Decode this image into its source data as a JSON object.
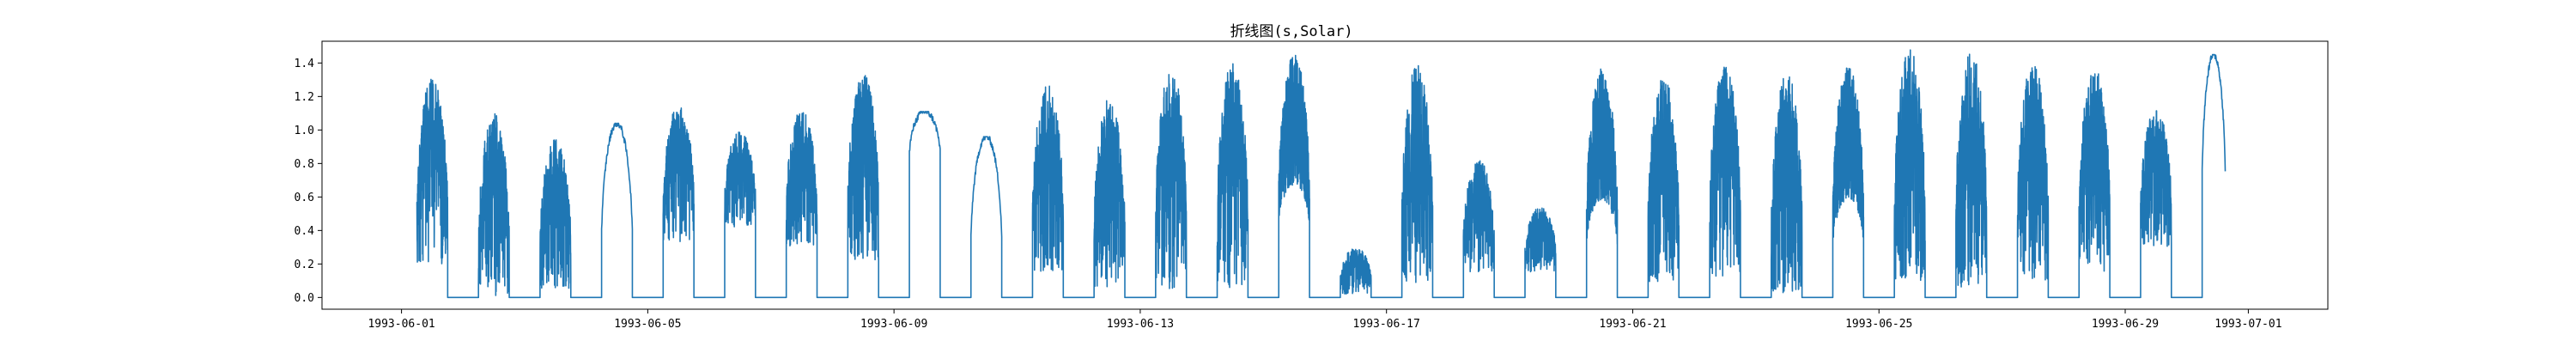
{
  "chart_data": {
    "type": "line",
    "title": "折线图(s,Solar)",
    "xlabel": "",
    "ylabel": "",
    "x_range": [
      "1993-05-30T17:00",
      "1993-07-02T07:00"
    ],
    "ylim": [
      -0.07,
      1.53
    ],
    "yticks": [
      0.0,
      0.2,
      0.4,
      0.6,
      0.8,
      1.0,
      1.2,
      1.4
    ],
    "ytick_labels": [
      "0.0",
      "0.2",
      "0.4",
      "0.6",
      "0.8",
      "1.0",
      "1.2",
      "1.4"
    ],
    "xticks": [
      "1993-06-01",
      "1993-06-05",
      "1993-06-09",
      "1993-06-13",
      "1993-06-17",
      "1993-06-21",
      "1993-06-25",
      "1993-06-29",
      "1993-07-01"
    ],
    "grid": false,
    "legend": "none",
    "series": [
      {
        "color": "#1f77b4",
        "days": [
          {
            "date": "1993-06-01",
            "sunrise": "06:00",
            "sunset": "18:00",
            "daytime_min": 0.2,
            "daytime_max": 1.31,
            "pattern": "variable"
          },
          {
            "date": "1993-06-02",
            "sunrise": "06:00",
            "sunset": "18:00",
            "daytime_min": 0.01,
            "daytime_max": 1.1,
            "pattern": "variable"
          },
          {
            "date": "1993-06-03",
            "sunrise": "06:00",
            "sunset": "18:00",
            "daytime_min": 0.05,
            "daytime_max": 0.95,
            "pattern": "variable"
          },
          {
            "date": "1993-06-04",
            "sunrise": "06:00",
            "sunset": "18:00",
            "daytime_min": 0.0,
            "daytime_max": 1.04,
            "pattern": "clear"
          },
          {
            "date": "1993-06-05",
            "sunrise": "06:00",
            "sunset": "18:00",
            "daytime_min": 0.33,
            "daytime_max": 1.15,
            "pattern": "variable"
          },
          {
            "date": "1993-06-06",
            "sunrise": "06:00",
            "sunset": "18:00",
            "daytime_min": 0.42,
            "daytime_max": 0.99,
            "pattern": "variable"
          },
          {
            "date": "1993-06-07",
            "sunrise": "06:00",
            "sunset": "18:00",
            "daytime_min": 0.28,
            "daytime_max": 1.12,
            "pattern": "variable"
          },
          {
            "date": "1993-06-08",
            "sunrise": "06:00",
            "sunset": "18:00",
            "daytime_min": 0.22,
            "daytime_max": 1.34,
            "pattern": "variable"
          },
          {
            "date": "1993-06-09",
            "sunrise": "06:00",
            "sunset": "18:00",
            "daytime_min": 0.72,
            "daytime_max": 1.11,
            "pattern": "clear"
          },
          {
            "date": "1993-06-10",
            "sunrise": "06:00",
            "sunset": "18:00",
            "daytime_min": 0.0,
            "daytime_max": 0.96,
            "pattern": "clear"
          },
          {
            "date": "1993-06-11",
            "sunrise": "06:00",
            "sunset": "18:00",
            "daytime_min": 0.15,
            "daytime_max": 1.28,
            "pattern": "variable"
          },
          {
            "date": "1993-06-12",
            "sunrise": "06:00",
            "sunset": "18:00",
            "daytime_min": 0.05,
            "daytime_max": 1.19,
            "pattern": "variable"
          },
          {
            "date": "1993-06-13",
            "sunrise": "06:00",
            "sunset": "18:00",
            "daytime_min": 0.05,
            "daytime_max": 1.37,
            "pattern": "variable"
          },
          {
            "date": "1993-06-14",
            "sunrise": "06:00",
            "sunset": "18:00",
            "daytime_min": 0.06,
            "daytime_max": 1.4,
            "pattern": "variable"
          },
          {
            "date": "1993-06-15",
            "sunrise": "06:00",
            "sunset": "18:00",
            "daytime_min": 0.25,
            "daytime_max": 1.45,
            "pattern": "dense"
          },
          {
            "date": "1993-06-16",
            "sunrise": "06:00",
            "sunset": "18:00",
            "daytime_min": 0.02,
            "daytime_max": 0.3,
            "pattern": "variable"
          },
          {
            "date": "1993-06-17",
            "sunrise": "06:00",
            "sunset": "18:00",
            "daytime_min": 0.08,
            "daytime_max": 1.39,
            "pattern": "variable"
          },
          {
            "date": "1993-06-18",
            "sunrise": "06:00",
            "sunset": "18:00",
            "daytime_min": 0.15,
            "daytime_max": 0.82,
            "pattern": "variable"
          },
          {
            "date": "1993-06-19",
            "sunrise": "06:00",
            "sunset": "18:00",
            "daytime_min": 0.15,
            "daytime_max": 0.54,
            "pattern": "variable"
          },
          {
            "date": "1993-06-20",
            "sunrise": "06:00",
            "sunset": "18:00",
            "daytime_min": 0.15,
            "daytime_max": 1.37,
            "pattern": "dense"
          },
          {
            "date": "1993-06-21",
            "sunrise": "06:00",
            "sunset": "18:00",
            "daytime_min": 0.08,
            "daytime_max": 1.32,
            "pattern": "variable"
          },
          {
            "date": "1993-06-22",
            "sunrise": "06:00",
            "sunset": "18:00",
            "daytime_min": 0.12,
            "daytime_max": 1.38,
            "pattern": "variable"
          },
          {
            "date": "1993-06-23",
            "sunrise": "06:00",
            "sunset": "18:00",
            "daytime_min": 0.02,
            "daytime_max": 1.35,
            "pattern": "variable"
          },
          {
            "date": "1993-06-24",
            "sunrise": "06:00",
            "sunset": "18:00",
            "daytime_min": 0.15,
            "daytime_max": 1.38,
            "pattern": "dense"
          },
          {
            "date": "1993-06-25",
            "sunrise": "06:00",
            "sunset": "18:00",
            "daytime_min": 0.1,
            "daytime_max": 1.48,
            "pattern": "variable"
          },
          {
            "date": "1993-06-26",
            "sunrise": "06:00",
            "sunset": "18:00",
            "daytime_min": 0.05,
            "daytime_max": 1.48,
            "pattern": "variable"
          },
          {
            "date": "1993-06-27",
            "sunrise": "06:00",
            "sunset": "18:00",
            "daytime_min": 0.1,
            "daytime_max": 1.4,
            "pattern": "variable"
          },
          {
            "date": "1993-06-28",
            "sunrise": "06:00",
            "sunset": "18:00",
            "daytime_min": 0.15,
            "daytime_max": 1.37,
            "pattern": "variable"
          },
          {
            "date": "1993-06-29",
            "sunrise": "06:00",
            "sunset": "18:00",
            "daytime_min": 0.3,
            "daytime_max": 1.12,
            "pattern": "variable"
          },
          {
            "date": "1993-06-30",
            "sunrise": "06:00",
            "sunset": "15:00",
            "daytime_min": 0.32,
            "daytime_max": 1.45,
            "pattern": "clear"
          }
        ]
      }
    ]
  }
}
